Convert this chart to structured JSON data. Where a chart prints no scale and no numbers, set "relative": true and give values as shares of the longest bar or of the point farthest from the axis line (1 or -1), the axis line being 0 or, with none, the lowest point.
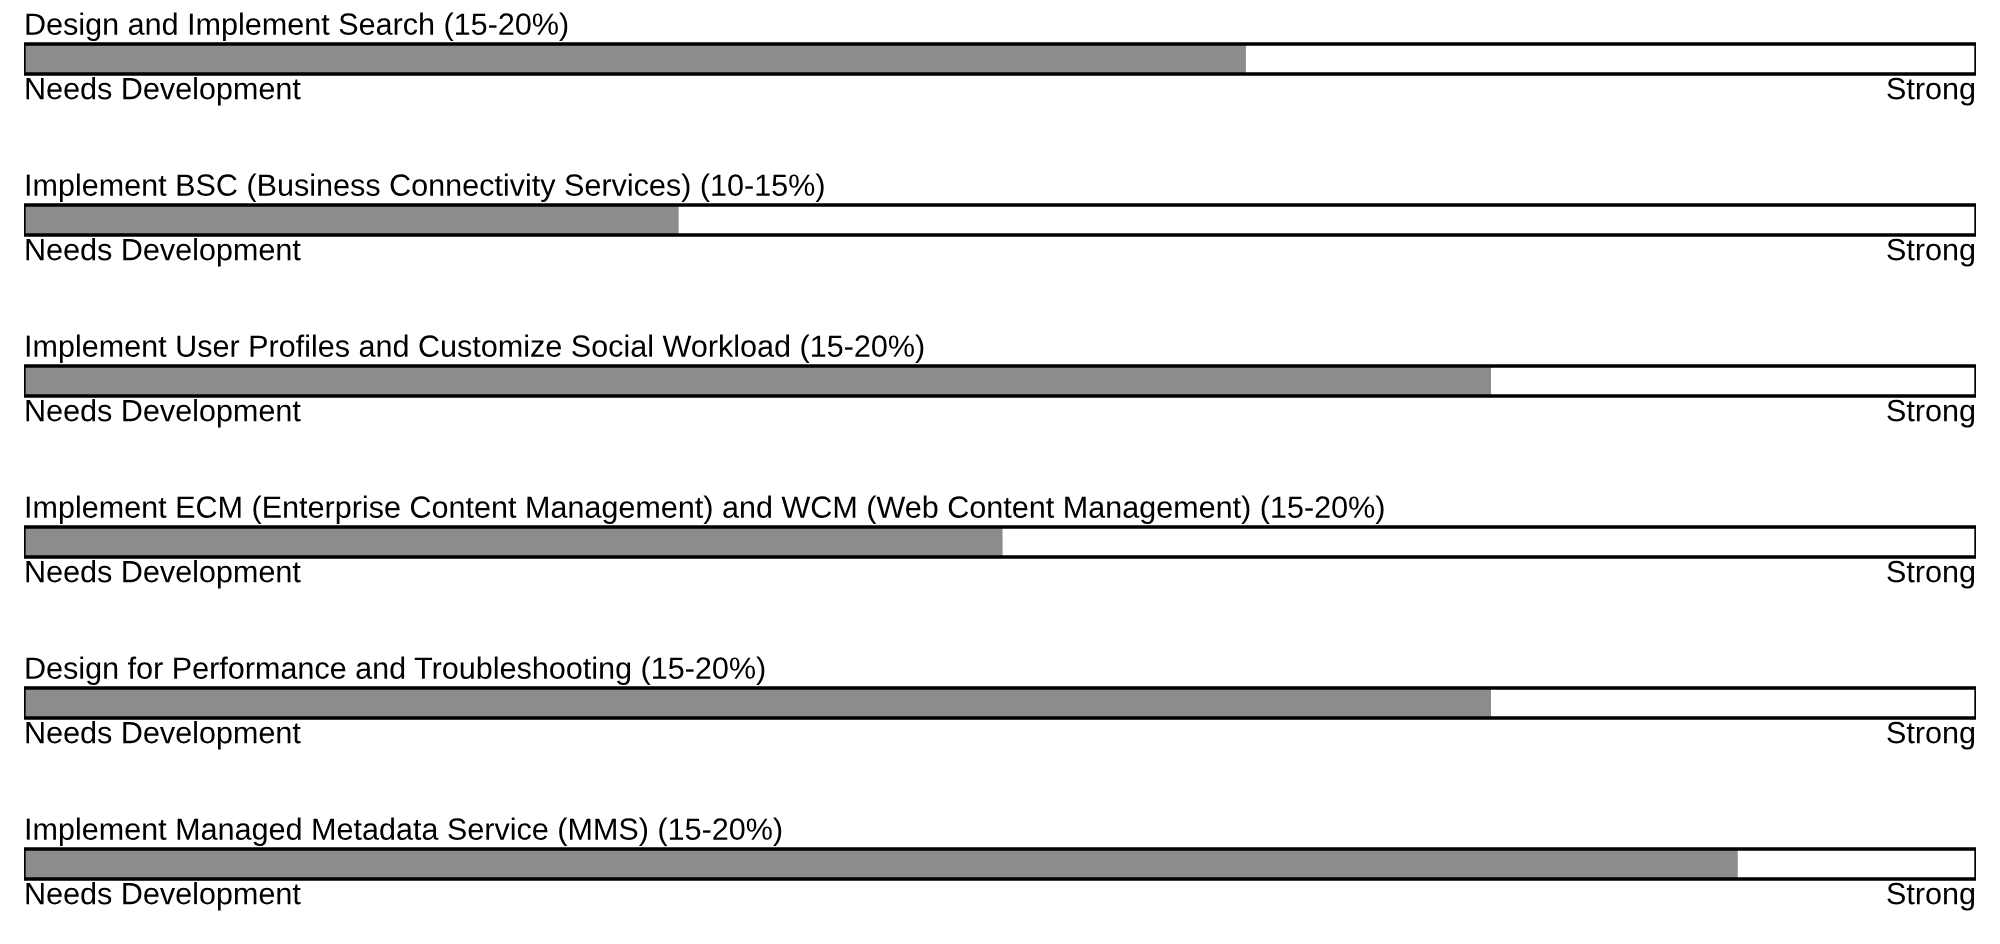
{
  "chart_data": {
    "type": "bar",
    "orientation": "horizontal",
    "relative": true,
    "xlim": [
      0,
      1.139
    ],
    "categories": [
      "Design and Implement Search (15-20%)",
      "Implement BSC (Business Connectivity Services) (10-15%)",
      "Implement User Profiles and Customize Social Workload (15-20%)",
      "Implement ECM (Enterprise Content Management) and WCM (Web Content Management) (15-20%)",
      "Design for Performance and Troubleshooting (15-20%)",
      "Implement Managed Metadata Service (MMS) (15-20%)"
    ],
    "values": [
      0.713,
      0.382,
      0.856,
      0.571,
      0.856,
      1
    ],
    "color": "#8c8c8c",
    "annotations": [
      "Needs Development",
      "Strong",
      "Needs Development",
      "Strong",
      "Needs Development",
      "Strong",
      "Needs Development",
      "Strong",
      "Needs Development",
      "Strong",
      "Needs Development",
      "Strong"
    ]
  }
}
